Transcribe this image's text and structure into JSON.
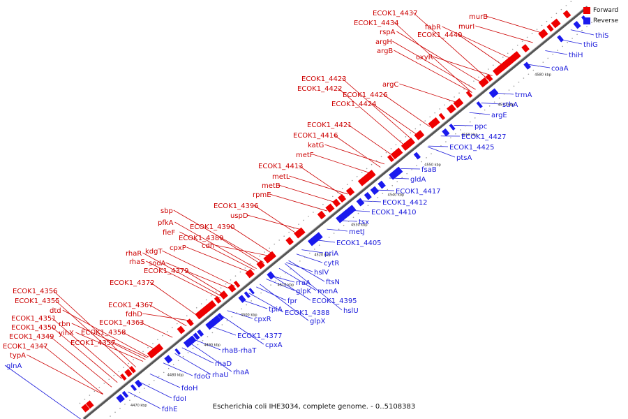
{
  "caption": "Escherichia coli IHE3034, complete genome. - 0..5108383",
  "legend": {
    "forward": {
      "label": "Forward",
      "color": "#ee0000"
    },
    "reverse": {
      "label": "Reverse",
      "color": "#1a1aee"
    }
  },
  "colors": {
    "forward_label": "#cc0000",
    "reverse_label": "#1a1adb",
    "backbone": "#555555"
  },
  "ticks": [
    "4470 kbp",
    "4480 kbp",
    "4490 kbp",
    "4500 kbp",
    "4510 kbp",
    "4520 kbp",
    "4530 kbp",
    "4540 kbp",
    "4550 kbp",
    "4560 kbp",
    "4570 kbp",
    "4580 kbp"
  ],
  "forward_genes": [
    "murB",
    "ECOK1_4437",
    "fabR",
    "ECOK1_4434",
    "murI",
    "rspA",
    "ECOK1_4440",
    "argH",
    "argB",
    "oxyR",
    "argC",
    "ECOK1_4423",
    "ECOK1_4422",
    "ECOK1_4426",
    "ECOK1_4424",
    "ECOK1_4421",
    "ECOK1_4416",
    "katG",
    "metF",
    "ECOK1_4413",
    "metL",
    "metB",
    "rpmE",
    "ECOK1_4396",
    "uspD",
    "sbp",
    "pfkA",
    "ECOK1_4390",
    "fieF",
    "ECOK1_4389",
    "cpxP",
    "cdh",
    "rhaR",
    "kdgT",
    "rhaS",
    "sodA",
    "ECOK1_4379",
    "ECOK1_4372",
    "ECOK1_4367",
    "fdhD",
    "ECOK1_4363",
    "ECOK1_4358",
    "ECOK1_4357",
    "ECOK1_4356",
    "ECOK1_4355",
    "dtd",
    "rbn",
    "yihX",
    "ECOK1_4351",
    "ECOK1_4350",
    "ECOK1_4349",
    "ECOK1_4347",
    "typA"
  ],
  "reverse_genes": [
    "thiS",
    "thiG",
    "thiH",
    "coaA",
    "trmA",
    "sthA",
    "argE",
    "ppc",
    "ECOK1_4427",
    "ECOK1_4425",
    "ptsA",
    "fsaB",
    "gldA",
    "ECOK1_4417",
    "ECOK1_4412",
    "ECOK1_4410",
    "tsx",
    "metJ",
    "ECOK1_4405",
    "priA",
    "cytR",
    "hslV",
    "ftsN",
    "rraA",
    "menA",
    "glpK",
    "ECOK1_4395",
    "fpr",
    "hslU",
    "tpiA",
    "ECOK1_4388",
    "glpX",
    "cpxR",
    "ECOK1_4377",
    "cpxA",
    "rhaB-rhaT",
    "rhaD",
    "rhaA",
    "rhaU",
    "fdoG",
    "fdoH",
    "fdoI",
    "fdhE",
    "glnA"
  ]
}
